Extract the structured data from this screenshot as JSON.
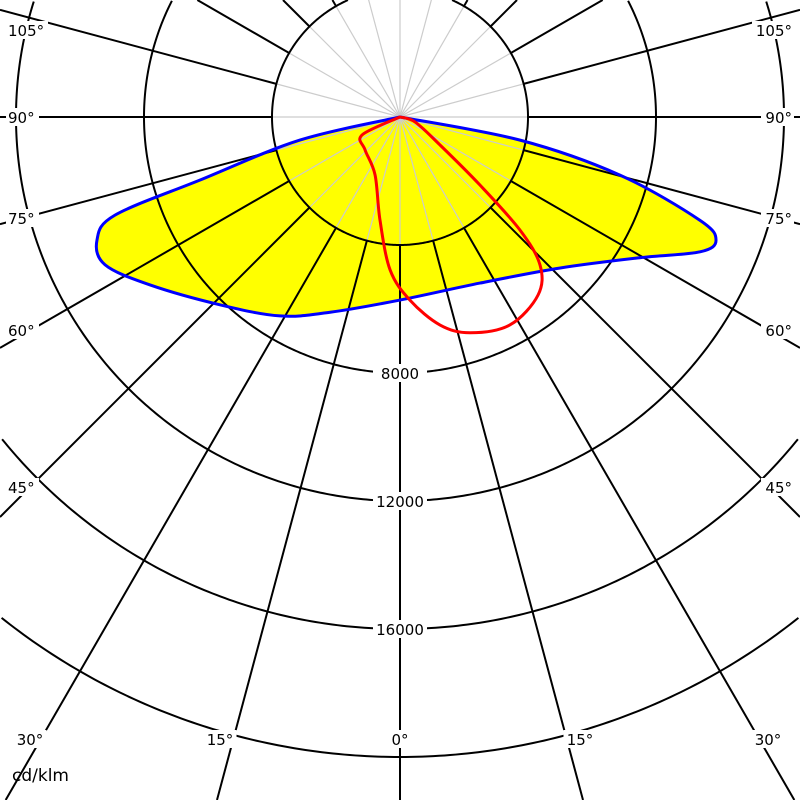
{
  "chart_data": {
    "type": "polar",
    "unit_label": "cd/klm",
    "radial_ticks": [
      4000,
      8000,
      12000,
      16000,
      20000
    ],
    "radial_tick_labels": [
      "8000",
      "12000",
      "16000"
    ],
    "angle_step": 15,
    "angle_labels_left": [
      "105°",
      "90°",
      "75°",
      "60°",
      "45°"
    ],
    "angle_labels_right": [
      "105°",
      "90°",
      "75°",
      "60°",
      "45°"
    ],
    "angle_labels_bottom": [
      "30°",
      "15°",
      "0°",
      "15°",
      "30°"
    ],
    "grid": true,
    "series": [
      {
        "color": "#0000ff",
        "fill": "#ffff00",
        "points": [
          [
            -90,
            0
          ],
          [
            -77,
            3210
          ],
          [
            -72.5,
            6560
          ],
          [
            -71,
            9420
          ],
          [
            -67.9,
            10220
          ],
          [
            -63.4,
            10310
          ],
          [
            -56.1,
            9410
          ],
          [
            -43.8,
            8130
          ],
          [
            -31.1,
            7260
          ],
          [
            -19.7,
            6480
          ],
          [
            0,
            5720
          ],
          [
            25.7,
            5760
          ],
          [
            46.7,
            6880
          ],
          [
            59.6,
            8690
          ],
          [
            65.8,
            10280
          ],
          [
            68.7,
            10600
          ],
          [
            71,
            9910
          ],
          [
            75.2,
            7110
          ],
          [
            79.1,
            3820
          ],
          [
            90,
            0
          ]
        ]
      },
      {
        "color": "#ff0000",
        "fill": "none",
        "points": [
          [
            -90,
            0
          ],
          [
            -64.7,
            1310
          ],
          [
            -46.7,
            1500
          ],
          [
            -23.3,
            1970
          ],
          [
            -11,
            3280
          ],
          [
            -3.7,
            4790
          ],
          [
            3.1,
            5730
          ],
          [
            10.9,
            6620
          ],
          [
            18,
            7090
          ],
          [
            27.9,
            7350
          ],
          [
            37.8,
            7040
          ],
          [
            43.4,
            6370
          ],
          [
            46.7,
            5150
          ],
          [
            49.6,
            3280
          ],
          [
            55,
            1530
          ],
          [
            71.6,
            500
          ],
          [
            90,
            0
          ]
        ]
      }
    ]
  }
}
